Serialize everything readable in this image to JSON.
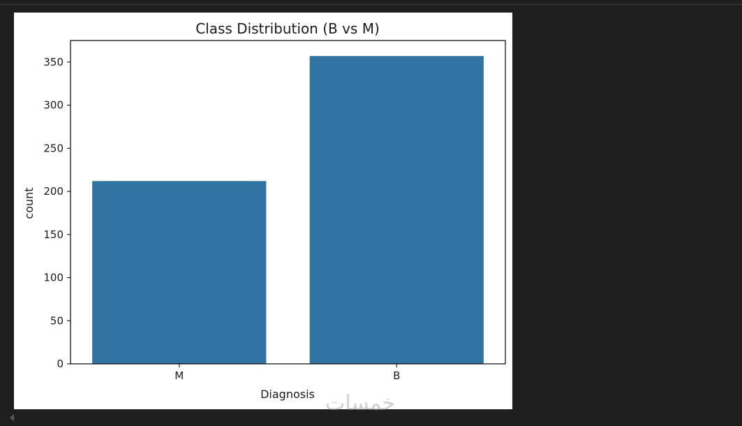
{
  "chart_data": {
    "type": "bar",
    "title": "Class Distribution (B vs M)",
    "xlabel": "Diagnosis",
    "ylabel": "count",
    "categories": [
      "M",
      "B"
    ],
    "values": [
      212,
      357
    ],
    "ylim": [
      0,
      375
    ],
    "yticks": [
      0,
      50,
      100,
      150,
      200,
      250,
      300,
      350
    ],
    "bar_color": "#3274a1",
    "grid": false
  },
  "watermark": "خمسات"
}
